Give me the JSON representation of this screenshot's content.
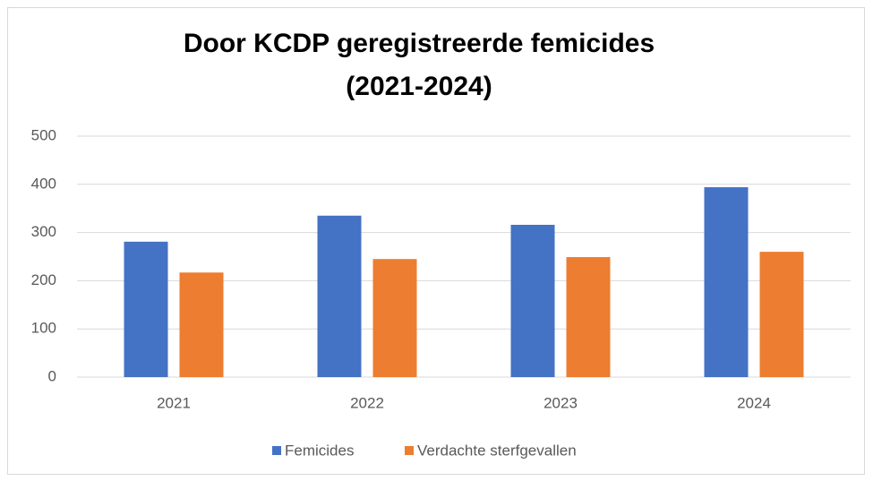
{
  "chart_data": {
    "type": "bar",
    "title": [
      "Door KCDP geregistreerde femicides",
      "(2021-2024)"
    ],
    "categories": [
      "2021",
      "2022",
      "2023",
      "2024"
    ],
    "series": [
      {
        "name": "Femicides",
        "color": "#4472c4",
        "values": [
          281,
          335,
          316,
          394
        ]
      },
      {
        "name": "Verdachte sterfgevallen",
        "color": "#ed7d31",
        "values": [
          217,
          245,
          249,
          260
        ]
      }
    ],
    "ylim": [
      0,
      500
    ],
    "yticks": [
      0,
      100,
      200,
      300,
      400,
      500
    ],
    "grid": true,
    "legend": "bottom"
  }
}
